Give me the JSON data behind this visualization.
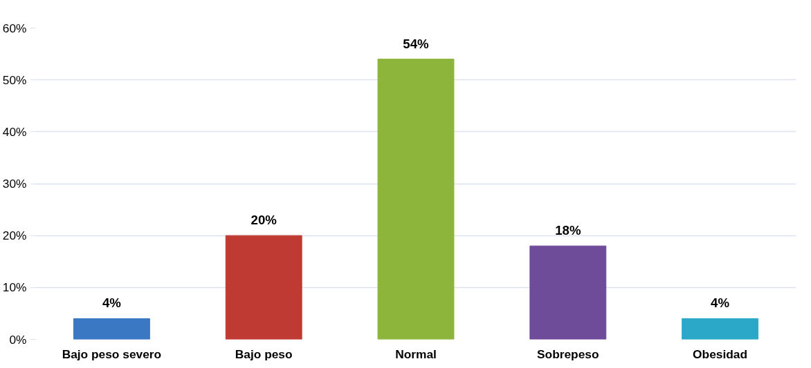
{
  "chart_data": {
    "type": "bar",
    "categories": [
      "Bajo peso severo",
      "Bajo peso",
      "Normal",
      "Sobrepeso",
      "Obesidad"
    ],
    "values": [
      4,
      20,
      54,
      18,
      4
    ],
    "colors": [
      "#3a78c4",
      "#bf3a33",
      "#8db53c",
      "#6e4c99",
      "#2ba7c8"
    ],
    "value_labels": [
      "4%",
      "20%",
      "54%",
      "18%",
      "4%"
    ],
    "ylim": [
      0,
      60
    ],
    "yticks": [
      {
        "value": 0,
        "label": "0%"
      },
      {
        "value": 10,
        "label": "10%"
      },
      {
        "value": 20,
        "label": "20%"
      },
      {
        "value": 30,
        "label": "30%"
      },
      {
        "value": 40,
        "label": "40%"
      },
      {
        "value": 50,
        "label": "50%"
      },
      {
        "value": 60,
        "label": "60%"
      }
    ],
    "grid": "y"
  }
}
